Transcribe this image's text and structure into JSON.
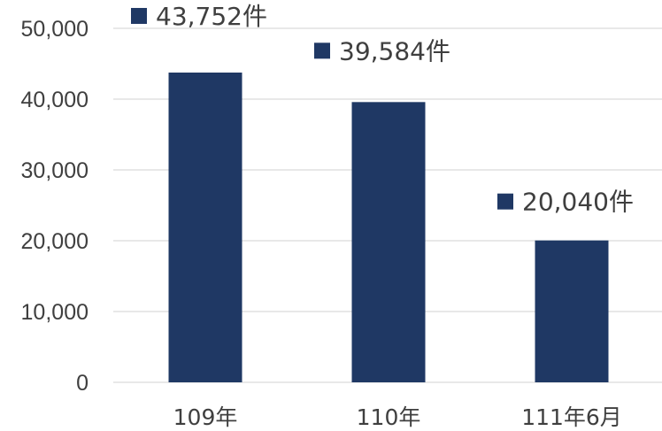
{
  "chart_data": {
    "type": "bar",
    "categories": [
      "109年",
      "110年",
      "111年6月"
    ],
    "values": [
      43752,
      39584,
      20040
    ],
    "data_labels": [
      "43,752件",
      "39,584件",
      "20,040件"
    ],
    "ylim": [
      0,
      50000
    ],
    "yticks": [
      0,
      10000,
      20000,
      30000,
      40000,
      50000
    ],
    "ytick_labels": [
      "0",
      "10,000",
      "20,000",
      "30,000",
      "40,000",
      "50,000"
    ],
    "title": "",
    "xlabel": "",
    "ylabel": "",
    "grid": true,
    "bar_color": "#1f3864",
    "marker_color": "#1f3864"
  }
}
